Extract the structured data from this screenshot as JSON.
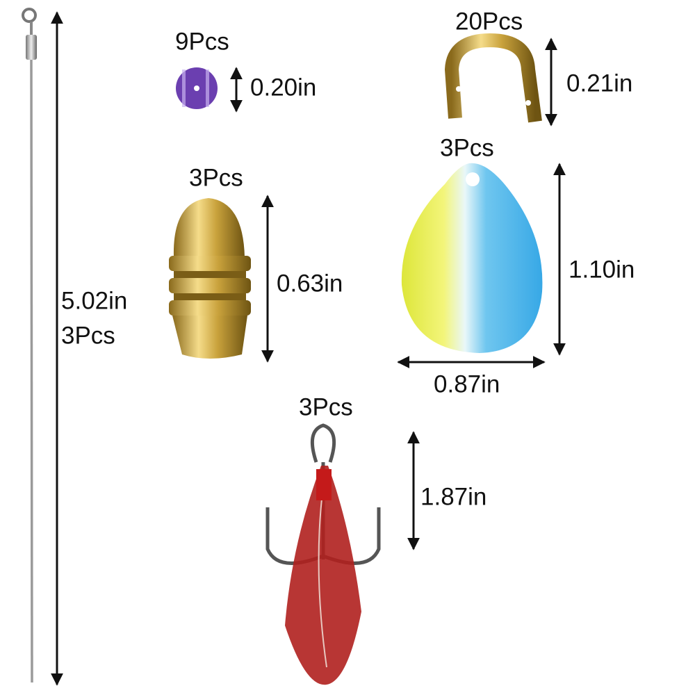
{
  "parts": [
    {
      "size": "5.02in",
      "quantity": "3Pcs"
    },
    {
      "quantity": "9Pcs",
      "size": "0.20in"
    },
    {
      "quantity": "20Pcs",
      "size": "0.21in"
    },
    {
      "quantity": "3Pcs",
      "size": "0.63in"
    },
    {
      "quantity": "3Pcs",
      "height": "1.10in",
      "width": "0.87in"
    },
    {
      "quantity": "3Pcs",
      "size": "1.87in"
    }
  ]
}
